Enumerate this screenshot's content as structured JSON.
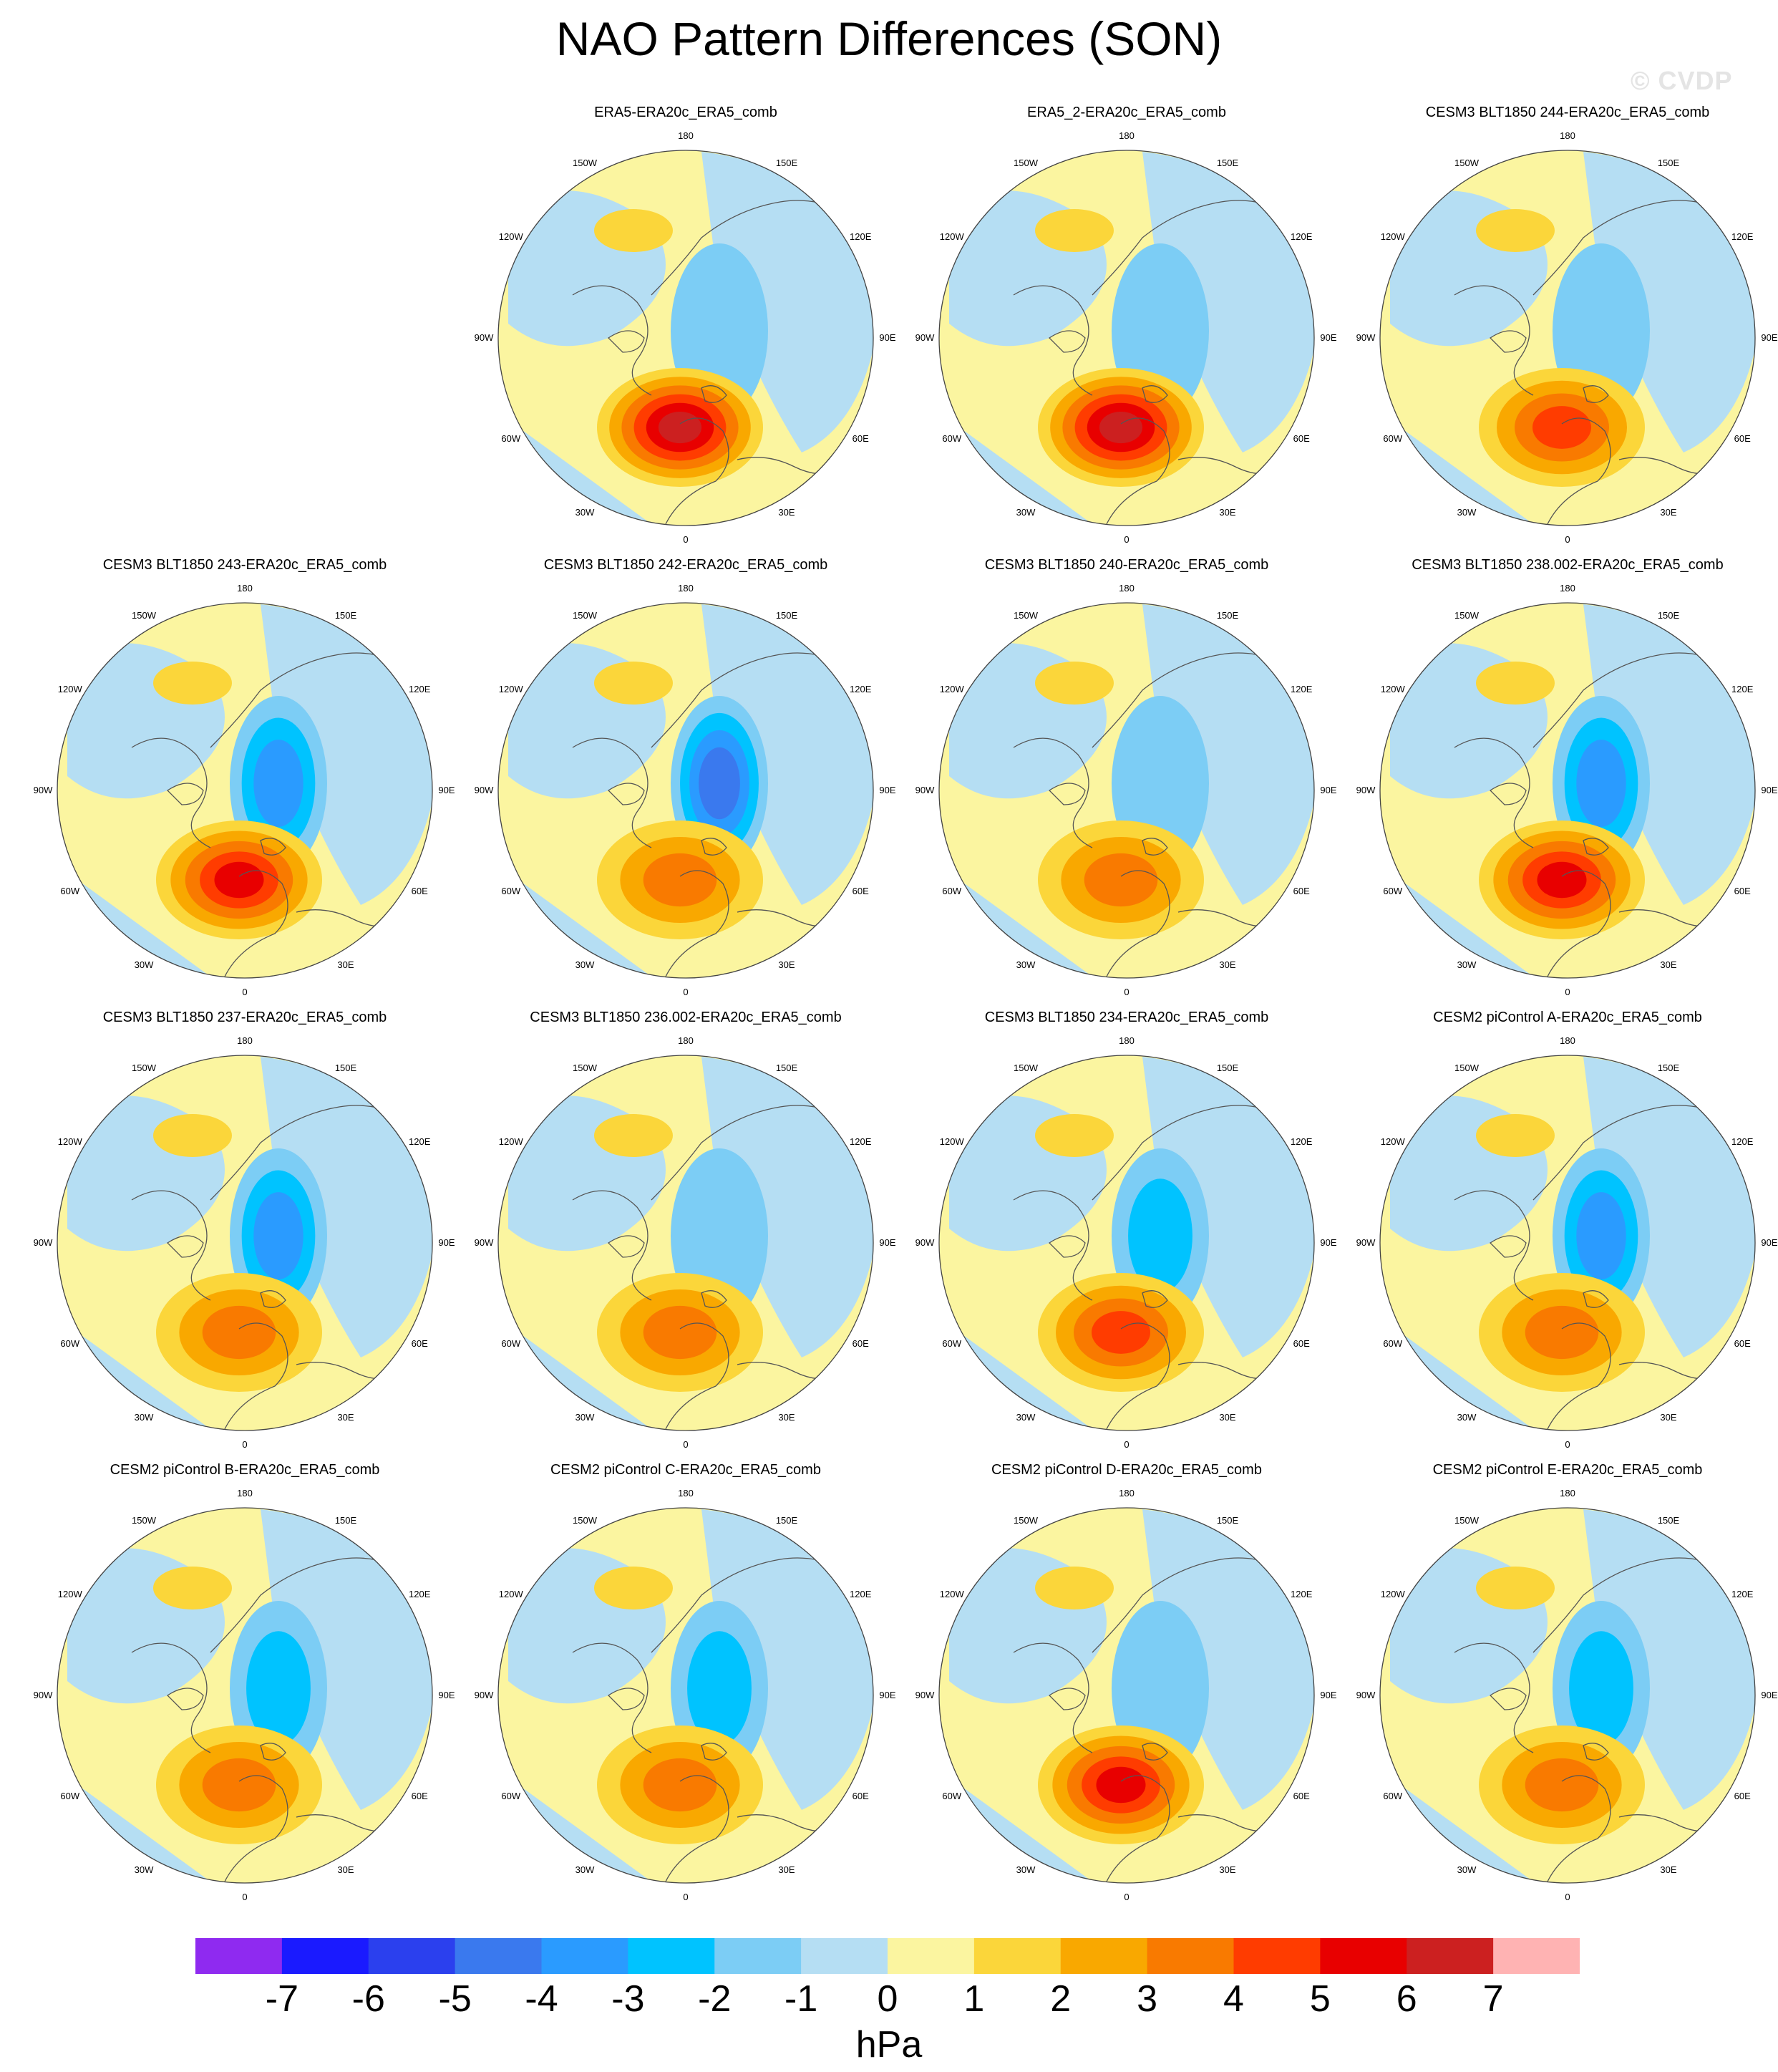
{
  "title": "NAO Pattern Differences (SON)",
  "watermark": "© CVDP",
  "lon_labels": {
    "top": "180",
    "bottom": "0",
    "left": "90W",
    "right": "90E",
    "upper_left_1": "150W",
    "upper_right_1": "150E",
    "upper_left_2": "120W",
    "upper_right_2": "120E",
    "lower_left_1": "60W",
    "lower_right_1": "60E",
    "lower_left_2": "30W",
    "lower_right_2": "30E"
  },
  "colors": {
    "ocean_neg": "#b5def3",
    "land_pos": "#fbf5a0",
    "coast": "#555555"
  },
  "colorbar": {
    "unit": "hPa",
    "colors": [
      "#8f2af0",
      "#1a1aff",
      "#2b40ee",
      "#3a79ee",
      "#2a9bff",
      "#00c3ff",
      "#7ccdf5",
      "#b5def3",
      "#fbf5a0",
      "#fbd63a",
      "#f9a800",
      "#f97a00",
      "#ff3c00",
      "#e80000",
      "#cc2020",
      "#ffb3b3"
    ],
    "labels": [
      "-7",
      "-6",
      "-5",
      "-4",
      "-3",
      "-2",
      "-1",
      "0",
      "1",
      "2",
      "3",
      "4",
      "5",
      "6",
      "7"
    ]
  },
  "panels": [
    {
      "title": "ERA5-ERA20c_ERA5_comb",
      "pos": 6.0,
      "neg": -1.6
    },
    {
      "title": "ERA5_2-ERA20c_ERA5_comb",
      "pos": 6.0,
      "neg": -1.6
    },
    {
      "title": "CESM3 BLT1850 244-ERA20c_ERA5_comb",
      "pos": 4.3,
      "neg": -1.2
    },
    {
      "title": "CESM3 BLT1850 243-ERA20c_ERA5_comb",
      "pos": 5.8,
      "neg": -3.3
    },
    {
      "title": "CESM3 BLT1850 242-ERA20c_ERA5_comb",
      "pos": 3.4,
      "neg": -4.0
    },
    {
      "title": "CESM3 BLT1850 240-ERA20c_ERA5_comb",
      "pos": 3.5,
      "neg": -1.9
    },
    {
      "title": "CESM3 BLT1850 238.002-ERA20c_ERA5_comb",
      "pos": 5.3,
      "neg": -3.4
    },
    {
      "title": "CESM3 BLT1850 237-ERA20c_ERA5_comb",
      "pos": 3.6,
      "neg": -3.5
    },
    {
      "title": "CESM3 BLT1850 236.002-ERA20c_ERA5_comb",
      "pos": 3.7,
      "neg": -1.9
    },
    {
      "title": "CESM3 BLT1850 234-ERA20c_ERA5_comb",
      "pos": 4.3,
      "neg": -2.2
    },
    {
      "title": "CESM2 piControl A-ERA20c_ERA5_comb",
      "pos": 3.1,
      "neg": -3.2
    },
    {
      "title": "CESM2 piControl B-ERA20c_ERA5_comb",
      "pos": 3.3,
      "neg": -2.9
    },
    {
      "title": "CESM2 piControl C-ERA20c_ERA5_comb",
      "pos": 3.2,
      "neg": -2.5
    },
    {
      "title": "CESM2 piControl D-ERA20c_ERA5_comb",
      "pos": 5.4,
      "neg": -1.8
    },
    {
      "title": "CESM2 piControl E-ERA20c_ERA5_comb",
      "pos": 3.5,
      "neg": -2.4
    }
  ]
}
